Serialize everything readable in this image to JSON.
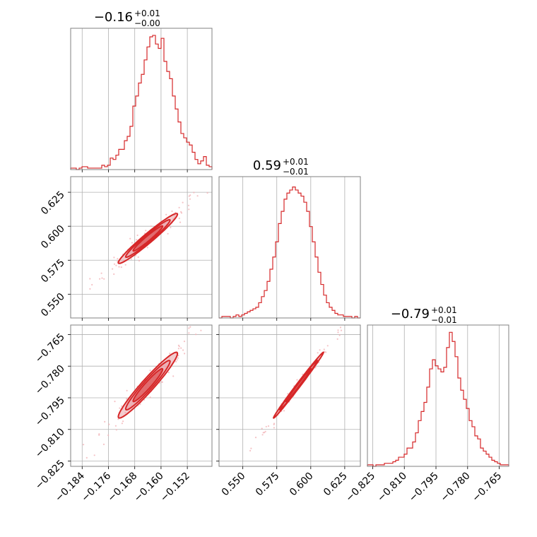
{
  "colors": {
    "accent": "#d62728",
    "fill": "#eaa0a6",
    "scatter": "#f2b4b8",
    "grid": "#b0b0b0",
    "frame": "#808080"
  },
  "chart_data": {
    "type": "corner",
    "parameters": [
      {
        "title": {
          "median": "−0.16",
          "plus": "+0.01",
          "minus": "−0.00"
        },
        "range": [
          -0.1875,
          -0.1445
        ],
        "ticks": [
          -0.184,
          -0.176,
          -0.168,
          -0.16,
          -0.152
        ],
        "tick_labels": [
          "−0.184",
          "−0.176",
          "−0.168",
          "−0.160",
          "−0.152"
        ],
        "hist": {
          "x0": -0.1875,
          "bin": 0.00086,
          "counts": [
            1,
            1,
            0,
            1,
            2,
            2,
            1,
            1,
            1,
            1,
            1,
            3,
            2,
            3,
            8,
            7,
            10,
            14,
            14,
            20,
            23,
            30,
            44,
            51,
            60,
            66,
            76,
            85,
            92,
            93,
            87,
            84,
            91,
            75,
            68,
            63,
            51,
            42,
            33,
            25,
            22,
            19,
            17,
            12,
            7,
            4,
            6,
            9,
            3,
            2
          ]
        },
        "ymax": 95
      },
      {
        "title": {
          "median": "0.59",
          "plus": "+0.01",
          "minus": "−0.01"
        },
        "range": [
          0.5325,
          0.6365
        ],
        "ticks": [
          0.55,
          0.575,
          0.6,
          0.625
        ],
        "tick_labels": [
          "0.550",
          "0.575",
          "0.600",
          "0.625"
        ],
        "hist": {
          "x0": 0.5325,
          "bin": 0.00208,
          "counts": [
            0,
            1,
            1,
            1,
            0,
            1,
            2,
            1,
            2,
            3,
            4,
            5,
            6,
            7,
            10,
            14,
            18,
            24,
            32,
            40,
            50,
            62,
            70,
            78,
            82,
            84,
            86,
            84,
            82,
            80,
            76,
            70,
            60,
            50,
            40,
            30,
            22,
            15,
            10,
            7,
            5,
            3,
            2,
            2,
            1,
            1,
            1,
            0,
            1,
            0
          ]
        },
        "ymax": 90
      },
      {
        "title": {
          "median": "−0.79",
          "plus": "+0.01",
          "minus": "−0.01"
        },
        "range": [
          -0.8275,
          -0.7605
        ],
        "ticks": [
          -0.825,
          -0.81,
          -0.795,
          -0.78,
          -0.765
        ],
        "tick_labels": [
          "−0.825",
          "−0.810",
          "−0.795",
          "−0.780",
          "−0.765"
        ],
        "hist": {
          "x0": -0.8275,
          "bin": 0.00134,
          "counts": [
            1,
            1,
            0,
            1,
            1,
            1,
            2,
            2,
            2,
            3,
            4,
            6,
            6,
            8,
            12,
            12,
            16,
            22,
            30,
            36,
            42,
            52,
            64,
            70,
            66,
            64,
            62,
            65,
            78,
            88,
            82,
            72,
            58,
            50,
            44,
            38,
            30,
            26,
            20,
            18,
            12,
            10,
            8,
            6,
            4,
            3,
            2,
            1,
            1,
            1
          ]
        },
        "ymax": 90
      }
    ],
    "correlation": {
      "pairs": [
        {
          "x": 0,
          "y": 1,
          "mean": [
            -0.164,
            0.591
          ],
          "sigma": [
            0.0045,
            0.0092
          ],
          "rho": 0.97
        },
        {
          "x": 0,
          "y": 2,
          "mean": [
            -0.164,
            -0.789
          ],
          "sigma": [
            0.0045,
            0.0078
          ],
          "rho": 0.96
        },
        {
          "x": 1,
          "y": 2,
          "mean": [
            0.591,
            -0.789
          ],
          "sigma": [
            0.0092,
            0.0078
          ],
          "rho": 0.995
        }
      ],
      "contour_levels_sigma": [
        1,
        1.5,
        2
      ]
    }
  }
}
